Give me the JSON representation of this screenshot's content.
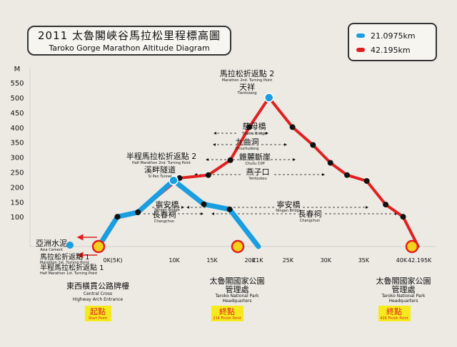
{
  "title": {
    "cn": "2011 太魯閣峽谷馬拉松里程標高圖",
    "en": "Taroko Gorge Marathon Altitude Diagram"
  },
  "legend": [
    {
      "label": "21.0975km",
      "color": "#1a9ee0"
    },
    {
      "label": "42.195km",
      "color": "#e02020"
    }
  ],
  "colors": {
    "half": "#1a9ee0",
    "full": "#e02020",
    "start_marker": "#f2d21a",
    "marker_ring": "#e02020",
    "box": "#f5ea1d"
  },
  "chart_data": {
    "type": "line",
    "title": "2011 太魯閣峽谷馬拉松里程標高圖",
    "subtitle": "Taroko Gorge Marathon Altitude Diagram",
    "ylabel": "M",
    "xlabel": "",
    "ylim": [
      0,
      550
    ],
    "xlim": [
      -5,
      44
    ],
    "y_ticks": [
      "100",
      "150",
      "200",
      "250",
      "300",
      "350",
      "400",
      "450",
      "500",
      "550"
    ],
    "y_tick_values": [
      100,
      150,
      200,
      250,
      300,
      350,
      400,
      450,
      500,
      550
    ],
    "x_ticks": [
      "0K(5K)",
      "10K",
      "15K",
      "20K",
      "21K",
      "25K",
      "30K",
      "35K",
      "40K",
      "42.195K"
    ],
    "x_tick_values": [
      0,
      10,
      15,
      20,
      21,
      25,
      30,
      35,
      40,
      42.195
    ],
    "series": [
      {
        "name": "21.0975km",
        "x": [
          0,
          2.5,
          5.2,
          9.9,
          13.9,
          17.3,
          21.1
        ],
        "y": [
          0,
          100,
          115,
          222,
          142,
          125,
          0
        ]
      },
      {
        "name": "42.195km",
        "x": [
          0,
          2.5,
          5.2,
          10.7,
          14.5,
          17.4,
          19.9,
          22.5,
          25.6,
          28.3,
          30.6,
          32.8,
          35.4,
          37.9,
          40.2,
          42.195
        ],
        "y": [
          0,
          100,
          115,
          230,
          240,
          290,
          401,
          500,
          401,
          341,
          281,
          240,
          220,
          141,
          100,
          0
        ]
      }
    ],
    "grid": false,
    "legend_position": "top-right"
  },
  "annotations": {
    "turn2_cn": "馬拉松折返點 2",
    "turn2_en": "Marathon 2nd. Turning Point",
    "tianxiang_cn": "天祥",
    "tianxiang_en": "Tienhsiang",
    "cimu_cn": "慈母橋",
    "cimu_en": "Tzumu Bridge",
    "jiuqu_cn": "九曲洞",
    "jiuqu_en": "Chiuchudong",
    "zhuilu_cn": "錐麓斷崖",
    "zhuilu_en": "Chuilu Cliff",
    "yanzikou_cn": "燕子口",
    "yanzikou_en": "Yentzukou",
    "halfturn2_cn": "半程馬拉松折返點 2",
    "halfturn2_en": "Half Marathon 2nd. Turning Point",
    "xipan_cn": "溪畔隧道",
    "xipan_en": "Si Pan Tunnel",
    "ningan_cn": "寧安橋",
    "ningan_en": "Ningan Bridge",
    "changchun_cn": "長春祠",
    "changchun_en": "Changchun",
    "yazhou_cn": "亞洲水泥",
    "yazhou_en": "Asia Cement",
    "turn1_cn": "馬拉松折返點 1",
    "turn1_en": "Marathon 1st. Turning Point",
    "halfturn1_cn": "半程馬拉松折返點 1",
    "halfturn1_en": "Half Marathon 1st. Turning Point"
  },
  "bottom_labels": {
    "start_cn": "東西橫貫公路牌樓",
    "start_en1": "Central Cross",
    "start_en2": "Highway Arch Entrance",
    "start_box_cn": "起點",
    "start_box_en": "Start Point",
    "park1_cn1": "太魯閣國家公園",
    "park1_cn2": "管理處",
    "park1_en1": "Taroko National Park",
    "park1_en2": "Headquarters",
    "half_box_cn": "終點",
    "half_box_en": "21K Finish Point",
    "park2_cn1": "太魯閣國家公園",
    "park2_cn2": "管理處",
    "park2_en1": "Taroko National Park",
    "park2_en2": "Headquarters",
    "full_box_cn": "終點",
    "full_box_en": "42K Finish Point"
  }
}
